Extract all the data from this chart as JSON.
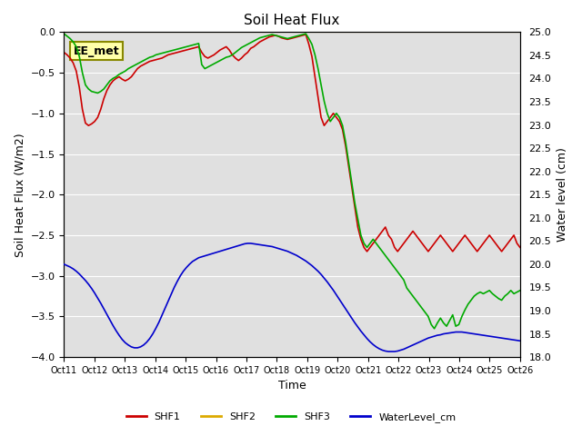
{
  "title": "Soil Heat Flux",
  "ylabel_left": "Soil Heat Flux (W/m2)",
  "ylabel_right": "Water level (cm)",
  "xlabel": "Time",
  "ylim_left": [
    -4.0,
    0.0
  ],
  "ylim_right": [
    18.0,
    25.0
  ],
  "yticks_left": [
    0.0,
    -0.5,
    -1.0,
    -1.5,
    -2.0,
    -2.5,
    -3.0,
    -3.5,
    -4.0
  ],
  "yticks_right": [
    18.0,
    18.5,
    19.0,
    19.5,
    20.0,
    20.5,
    21.0,
    21.5,
    22.0,
    22.5,
    23.0,
    23.5,
    24.0,
    24.5,
    25.0
  ],
  "xtick_labels": [
    "Oct 11",
    "Oct 12",
    "Oct 13",
    "Oct 14",
    "Oct 15",
    "Oct 16",
    "Oct 17",
    "Oct 18",
    "Oct 19",
    "Oct 20",
    "Oct 21",
    "Oct 22",
    "Oct 23",
    "Oct 24",
    "Oct 25",
    "Oct 26"
  ],
  "annotation_text": "EE_met",
  "bg_color": "#e0e0e0",
  "colors": {
    "SHF1": "#cc0000",
    "SHF2": "#ddaa00",
    "SHF3": "#00aa00",
    "WaterLevel_cm": "#0000cc"
  },
  "SHF2_value": 0.0,
  "shf1_y": [
    -0.25,
    -0.28,
    -0.32,
    -0.38,
    -0.48,
    -0.68,
    -0.95,
    -1.12,
    -1.15,
    -1.13,
    -1.1,
    -1.05,
    -0.95,
    -0.82,
    -0.72,
    -0.65,
    -0.6,
    -0.57,
    -0.55,
    -0.58,
    -0.6,
    -0.58,
    -0.55,
    -0.5,
    -0.45,
    -0.42,
    -0.4,
    -0.38,
    -0.36,
    -0.35,
    -0.34,
    -0.33,
    -0.32,
    -0.3,
    -0.28,
    -0.27,
    -0.26,
    -0.25,
    -0.24,
    -0.23,
    -0.22,
    -0.21,
    -0.2,
    -0.19,
    -0.18,
    -0.25,
    -0.3,
    -0.32,
    -0.3,
    -0.28,
    -0.25,
    -0.22,
    -0.2,
    -0.18,
    -0.22,
    -0.28,
    -0.32,
    -0.35,
    -0.32,
    -0.28,
    -0.25,
    -0.2,
    -0.18,
    -0.15,
    -0.12,
    -0.1,
    -0.08,
    -0.06,
    -0.05,
    -0.04,
    -0.05,
    -0.07,
    -0.08,
    -0.09,
    -0.08,
    -0.07,
    -0.06,
    -0.05,
    -0.04,
    -0.03,
    -0.15,
    -0.3,
    -0.55,
    -0.8,
    -1.05,
    -1.15,
    -1.1,
    -1.05,
    -1.0,
    -1.05,
    -1.1,
    -1.2,
    -1.4,
    -1.65,
    -1.9,
    -2.15,
    -2.4,
    -2.55,
    -2.65,
    -2.7,
    -2.65,
    -2.6,
    -2.55,
    -2.5,
    -2.45,
    -2.4,
    -2.5,
    -2.55,
    -2.65,
    -2.7,
    -2.65,
    -2.6,
    -2.55,
    -2.5,
    -2.45,
    -2.5,
    -2.55,
    -2.6,
    -2.65,
    -2.7,
    -2.65,
    -2.6,
    -2.55,
    -2.5,
    -2.55,
    -2.6,
    -2.65,
    -2.7,
    -2.65,
    -2.6,
    -2.55,
    -2.5,
    -2.55,
    -2.6,
    -2.65,
    -2.7,
    -2.65,
    -2.6,
    -2.55,
    -2.5,
    -2.55,
    -2.6,
    -2.65,
    -2.7,
    -2.65,
    -2.6,
    -2.55,
    -2.5,
    -2.6,
    -2.65
  ],
  "shf3_y": [
    -0.02,
    -0.05,
    -0.08,
    -0.12,
    -0.18,
    -0.3,
    -0.5,
    -0.65,
    -0.7,
    -0.73,
    -0.74,
    -0.75,
    -0.73,
    -0.7,
    -0.65,
    -0.6,
    -0.57,
    -0.55,
    -0.52,
    -0.5,
    -0.48,
    -0.45,
    -0.43,
    -0.41,
    -0.39,
    -0.37,
    -0.35,
    -0.33,
    -0.31,
    -0.3,
    -0.28,
    -0.27,
    -0.26,
    -0.25,
    -0.24,
    -0.23,
    -0.22,
    -0.21,
    -0.2,
    -0.19,
    -0.18,
    -0.17,
    -0.16,
    -0.15,
    -0.14,
    -0.4,
    -0.45,
    -0.43,
    -0.41,
    -0.39,
    -0.37,
    -0.35,
    -0.33,
    -0.31,
    -0.3,
    -0.28,
    -0.25,
    -0.22,
    -0.19,
    -0.17,
    -0.15,
    -0.13,
    -0.11,
    -0.09,
    -0.07,
    -0.06,
    -0.05,
    -0.04,
    -0.03,
    -0.04,
    -0.05,
    -0.06,
    -0.07,
    -0.08,
    -0.07,
    -0.06,
    -0.05,
    -0.04,
    -0.03,
    -0.02,
    -0.08,
    -0.15,
    -0.28,
    -0.45,
    -0.65,
    -0.85,
    -1.0,
    -1.1,
    -1.05,
    -1.0,
    -1.05,
    -1.15,
    -1.35,
    -1.6,
    -1.85,
    -2.1,
    -2.3,
    -2.5,
    -2.6,
    -2.65,
    -2.6,
    -2.55,
    -2.6,
    -2.65,
    -2.7,
    -2.75,
    -2.8,
    -2.85,
    -2.9,
    -2.95,
    -3.0,
    -3.05,
    -3.15,
    -3.2,
    -3.25,
    -3.3,
    -3.35,
    -3.4,
    -3.45,
    -3.5,
    -3.6,
    -3.65,
    -3.58,
    -3.52,
    -3.58,
    -3.62,
    -3.55,
    -3.48,
    -3.62,
    -3.6,
    -3.5,
    -3.42,
    -3.35,
    -3.3,
    -3.25,
    -3.22,
    -3.2,
    -3.22,
    -3.2,
    -3.18,
    -3.22,
    -3.25,
    -3.28,
    -3.3,
    -3.25,
    -3.22,
    -3.18,
    -3.22,
    -3.2,
    -3.18
  ],
  "wl_y": [
    20.0,
    19.97,
    19.94,
    19.9,
    19.85,
    19.79,
    19.72,
    19.65,
    19.57,
    19.48,
    19.38,
    19.27,
    19.16,
    19.04,
    18.92,
    18.8,
    18.68,
    18.57,
    18.47,
    18.38,
    18.31,
    18.26,
    18.22,
    18.2,
    18.2,
    18.22,
    18.26,
    18.32,
    18.4,
    18.5,
    18.62,
    18.75,
    18.9,
    19.05,
    19.2,
    19.35,
    19.5,
    19.63,
    19.75,
    19.85,
    19.93,
    20.0,
    20.06,
    20.1,
    20.14,
    20.16,
    20.18,
    20.2,
    20.22,
    20.24,
    20.26,
    20.28,
    20.3,
    20.32,
    20.34,
    20.36,
    20.38,
    20.4,
    20.42,
    20.44,
    20.45,
    20.45,
    20.44,
    20.43,
    20.42,
    20.41,
    20.4,
    20.39,
    20.38,
    20.36,
    20.34,
    20.32,
    20.3,
    20.28,
    20.25,
    20.22,
    20.19,
    20.15,
    20.11,
    20.07,
    20.02,
    19.97,
    19.91,
    19.85,
    19.78,
    19.7,
    19.62,
    19.53,
    19.44,
    19.34,
    19.24,
    19.14,
    19.04,
    18.94,
    18.84,
    18.74,
    18.65,
    18.56,
    18.48,
    18.4,
    18.33,
    18.27,
    18.22,
    18.18,
    18.15,
    18.13,
    18.12,
    18.12,
    18.12,
    18.13,
    18.15,
    18.17,
    18.2,
    18.23,
    18.26,
    18.29,
    18.32,
    18.35,
    18.38,
    18.41,
    18.43,
    18.45,
    18.47,
    18.48,
    18.5,
    18.51,
    18.52,
    18.53,
    18.54,
    18.54,
    18.54,
    18.53,
    18.52,
    18.51,
    18.5,
    18.49,
    18.48,
    18.47,
    18.46,
    18.45,
    18.44,
    18.43,
    18.42,
    18.41,
    18.4,
    18.39,
    18.38,
    18.37,
    18.36,
    18.35
  ]
}
